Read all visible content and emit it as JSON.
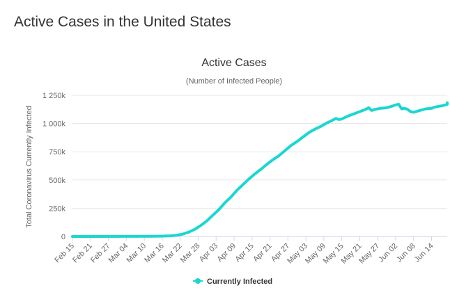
{
  "page": {
    "title": "Active Cases in the United States"
  },
  "chart_data": {
    "type": "line",
    "title": "Active Cases",
    "subtitle": "(Number of Infected People)",
    "xlabel": "",
    "ylabel": "Total Coronavirus Currently Infected",
    "ylim": [
      0,
      1250000
    ],
    "yticks": [
      {
        "value": 0,
        "label": "0"
      },
      {
        "value": 250000,
        "label": "250k"
      },
      {
        "value": 500000,
        "label": "500k"
      },
      {
        "value": 750000,
        "label": "750k"
      },
      {
        "value": 1000000,
        "label": "1 000k"
      },
      {
        "value": 1250000,
        "label": "1 250k"
      }
    ],
    "xticks": [
      {
        "day": 0,
        "label": "Feb 15"
      },
      {
        "day": 6,
        "label": "Feb 21"
      },
      {
        "day": 12,
        "label": "Feb 27"
      },
      {
        "day": 18,
        "label": "Mar 04"
      },
      {
        "day": 24,
        "label": "Mar 10"
      },
      {
        "day": 30,
        "label": "Mar 16"
      },
      {
        "day": 36,
        "label": "Mar 22"
      },
      {
        "day": 42,
        "label": "Mar 28"
      },
      {
        "day": 48,
        "label": "Apr 03"
      },
      {
        "day": 54,
        "label": "Apr 09"
      },
      {
        "day": 60,
        "label": "Apr 15"
      },
      {
        "day": 66,
        "label": "Apr 21"
      },
      {
        "day": 72,
        "label": "Apr 27"
      },
      {
        "day": 78,
        "label": "May 03"
      },
      {
        "day": 84,
        "label": "May 09"
      },
      {
        "day": 90,
        "label": "May 15"
      },
      {
        "day": 96,
        "label": "May 21"
      },
      {
        "day": 102,
        "label": "May 27"
      },
      {
        "day": 108,
        "label": "Jun 02"
      },
      {
        "day": 114,
        "label": "Jun 08"
      },
      {
        "day": 120,
        "label": "Jun 14"
      }
    ],
    "x_range_days": [
      0,
      122
    ],
    "series": [
      {
        "name": "Currently Infected",
        "color": "#1cd6d1",
        "points": [
          [
            0,
            0
          ],
          [
            26,
            1000
          ],
          [
            30,
            3000
          ],
          [
            33,
            6000
          ],
          [
            35,
            12000
          ],
          [
            37,
            22000
          ],
          [
            39,
            40000
          ],
          [
            41,
            65000
          ],
          [
            43,
            100000
          ],
          [
            45,
            140000
          ],
          [
            47,
            190000
          ],
          [
            49,
            240000
          ],
          [
            51,
            300000
          ],
          [
            53,
            350000
          ],
          [
            55,
            410000
          ],
          [
            57,
            460000
          ],
          [
            59,
            510000
          ],
          [
            61,
            555000
          ],
          [
            63,
            595000
          ],
          [
            65,
            640000
          ],
          [
            67,
            680000
          ],
          [
            69,
            715000
          ],
          [
            71,
            760000
          ],
          [
            73,
            805000
          ],
          [
            75,
            840000
          ],
          [
            77,
            880000
          ],
          [
            79,
            920000
          ],
          [
            81,
            950000
          ],
          [
            83,
            975000
          ],
          [
            85,
            1005000
          ],
          [
            87,
            1030000
          ],
          [
            88,
            1045000
          ],
          [
            89,
            1035000
          ],
          [
            90,
            1040000
          ],
          [
            92,
            1065000
          ],
          [
            94,
            1085000
          ],
          [
            96,
            1105000
          ],
          [
            98,
            1125000
          ],
          [
            99,
            1140000
          ],
          [
            100,
            1115000
          ],
          [
            101,
            1125000
          ],
          [
            103,
            1135000
          ],
          [
            105,
            1140000
          ],
          [
            107,
            1155000
          ],
          [
            108,
            1165000
          ],
          [
            109,
            1170000
          ],
          [
            110,
            1130000
          ],
          [
            111,
            1135000
          ],
          [
            112,
            1125000
          ],
          [
            113,
            1105000
          ],
          [
            114,
            1100000
          ],
          [
            116,
            1115000
          ],
          [
            118,
            1130000
          ],
          [
            120,
            1135000
          ],
          [
            121,
            1145000
          ],
          [
            122,
            1150000
          ],
          [
            124,
            1160000
          ],
          [
            126,
            1170000
          ],
          [
            128,
            1180000
          ],
          [
            130,
            1185000
          ]
        ]
      }
    ],
    "legend": {
      "position": "bottom-center",
      "entries": [
        "Currently Infected"
      ]
    },
    "grid": true
  }
}
